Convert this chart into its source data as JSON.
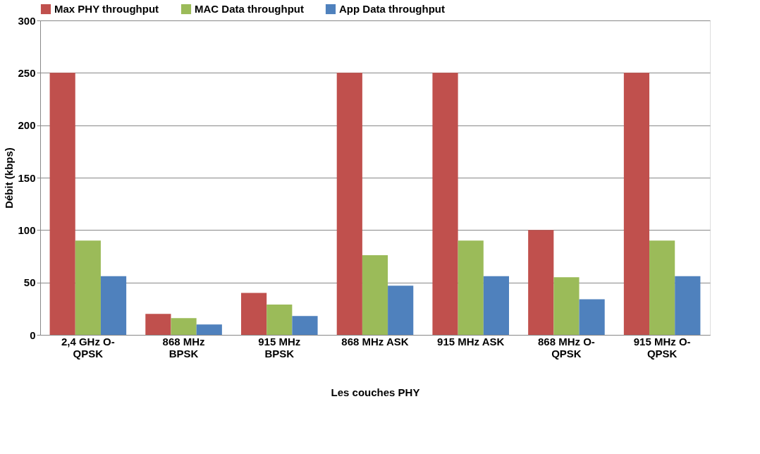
{
  "chart_data": {
    "type": "bar",
    "xlabel": "Les couches PHY",
    "ylabel": "Débit (kbps)",
    "categories": [
      "2,4 GHz O-\nQPSK",
      "868 MHz\nBPSK",
      "915 MHz\nBPSK",
      "868 MHz ASK",
      "915 MHz ASK",
      "868 MHz O-\nQPSK",
      "915 MHz O-\nQPSK"
    ],
    "series": [
      {
        "name": "Max PHY throughput",
        "color": "#c0504d",
        "values": [
          250,
          20,
          40,
          250,
          250,
          100,
          250
        ]
      },
      {
        "name": "MAC Data throughput",
        "color": "#9bbb59",
        "values": [
          90,
          16,
          29,
          76,
          90,
          55,
          90
        ]
      },
      {
        "name": "App Data throughput",
        "color": "#4f81bd",
        "values": [
          56,
          10,
          18,
          47,
          56,
          34,
          56
        ]
      }
    ],
    "ylim": [
      0,
      300
    ],
    "yticks": [
      0,
      50,
      100,
      150,
      200,
      250,
      300
    ],
    "grid": "y",
    "legend": "top"
  }
}
